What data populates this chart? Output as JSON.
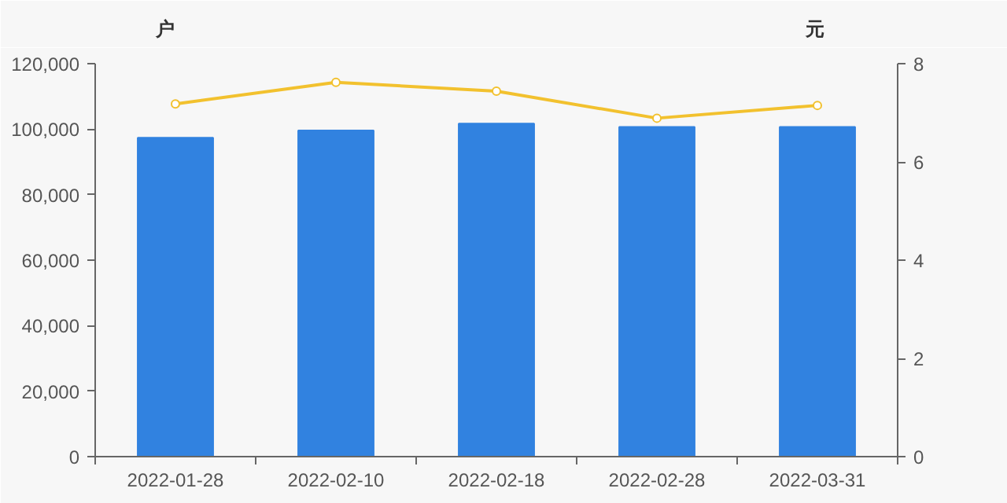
{
  "chart_data": {
    "type": "bar",
    "ylabel": "户",
    "y2label": "元",
    "categories": [
      "2022-01-28",
      "2022-02-10",
      "2022-02-18",
      "2022-02-28",
      "2022-03-31"
    ],
    "series": [
      {
        "color": "#3182e0",
        "values": [
          97400,
          99600,
          101700,
          100700,
          100700
        ]
      },
      {
        "type": "line",
        "axis": "y2",
        "color": "#f2c12e",
        "marker": "circle",
        "values": [
          7.18,
          7.62,
          7.44,
          6.89,
          7.15
        ]
      }
    ],
    "ylim": [
      0,
      120000
    ],
    "yticks": [
      {
        "value": 0,
        "label": "0"
      },
      {
        "value": 20000,
        "label": "20,000"
      },
      {
        "value": 40000,
        "label": "40,000"
      },
      {
        "value": 60000,
        "label": "60,000"
      },
      {
        "value": 80000,
        "label": "80,000"
      },
      {
        "value": 100000,
        "label": "100,000"
      },
      {
        "value": 120000,
        "label": "120,000"
      }
    ],
    "y2lim": [
      0,
      8
    ],
    "y2ticks": [
      0,
      2,
      4,
      6,
      8
    ],
    "grid": false
  }
}
